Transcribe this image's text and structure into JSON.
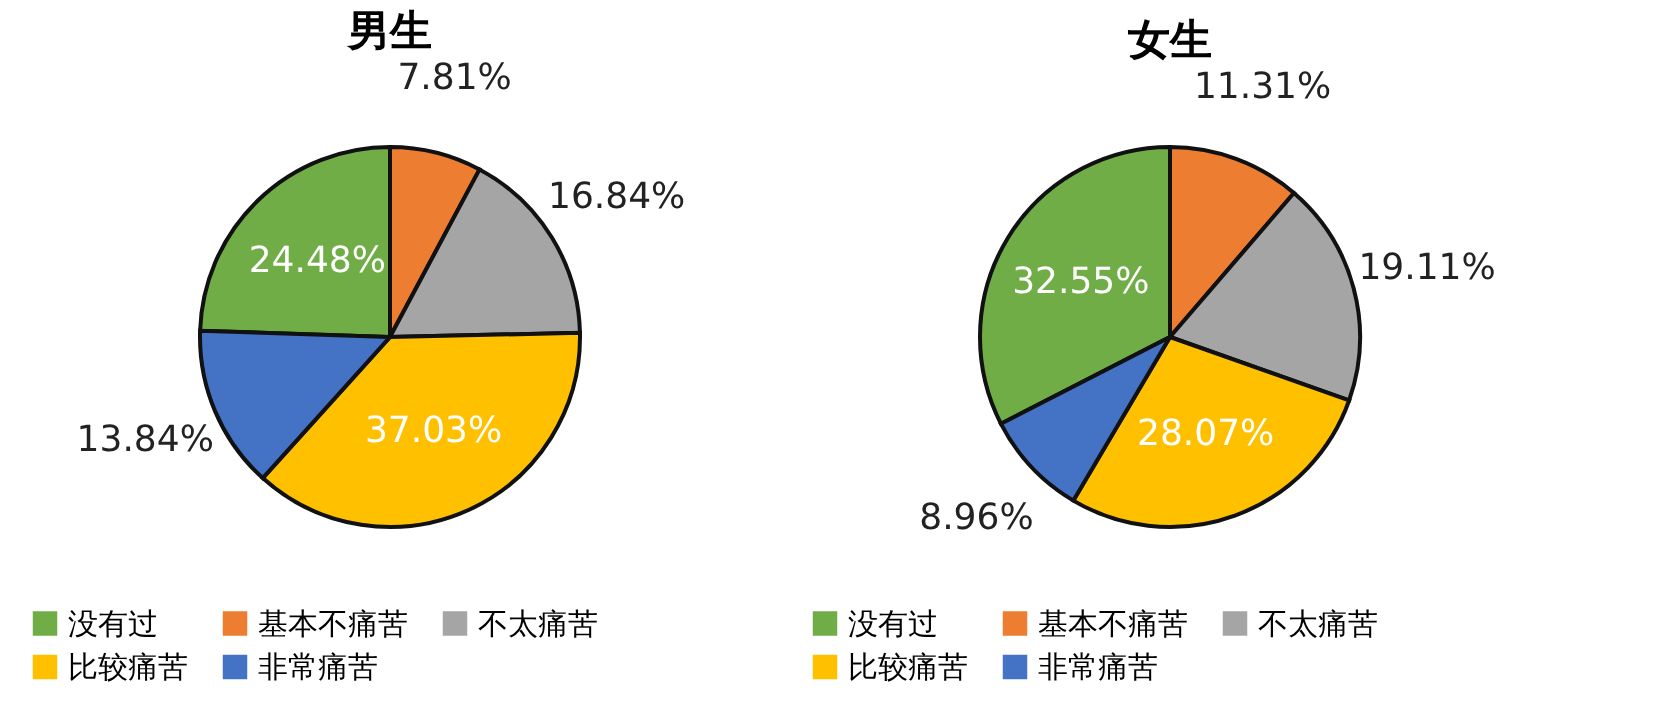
{
  "chart_data": [
    {
      "type": "pie",
      "title": "男生",
      "categories": [
        "没有过",
        "基本不痛苦",
        "不太痛苦",
        "比较痛苦",
        "非常痛苦"
      ],
      "values": [
        24.48,
        7.81,
        16.84,
        37.03,
        13.84
      ],
      "value_labels": [
        "24.48%",
        "7.81%",
        "16.84%",
        "37.03%",
        "13.84%"
      ],
      "colors": [
        "#70ad47",
        "#ed7d31",
        "#a5a5a5",
        "#ffc000",
        "#4472c4"
      ],
      "legend": "bottom"
    },
    {
      "type": "pie",
      "title": "女生",
      "categories": [
        "没有过",
        "基本不痛苦",
        "不太痛苦",
        "比较痛苦",
        "非常痛苦"
      ],
      "values": [
        32.55,
        11.31,
        19.11,
        28.07,
        8.96
      ],
      "value_labels": [
        "32.55%",
        "11.31%",
        "19.11%",
        "28.07%",
        "8.96%"
      ],
      "colors": [
        "#70ad47",
        "#ed7d31",
        "#a5a5a5",
        "#ffc000",
        "#4472c4"
      ],
      "legend": "bottom"
    }
  ]
}
